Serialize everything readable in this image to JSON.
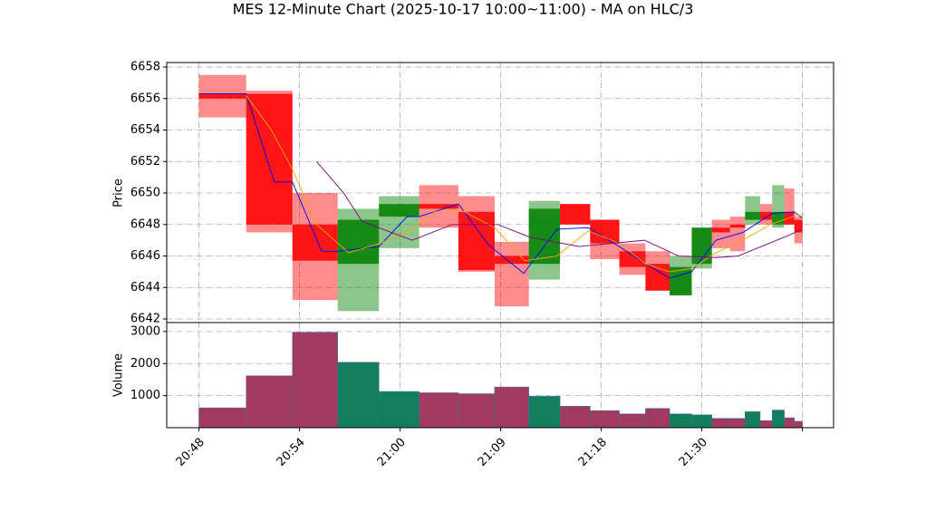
{
  "chart_data": [
    {
      "type": "candlestick",
      "title": "MES 12-Minute Chart (2025-10-17 10:00~11:00) - MA on HLC/3",
      "ylabel": "Price",
      "x_start": [
        0,
        0.47,
        0.93,
        1.38,
        1.79,
        2.19,
        2.58,
        2.94,
        3.28,
        3.59,
        3.89,
        4.18,
        4.44,
        4.68,
        4.9,
        5.1,
        5.28,
        5.43,
        5.58,
        5.7,
        5.82,
        5.92
      ],
      "x_end": [
        0.47,
        0.93,
        1.38,
        1.79,
        2.19,
        2.58,
        2.94,
        3.28,
        3.59,
        3.89,
        4.18,
        4.44,
        4.68,
        4.9,
        5.1,
        5.28,
        5.43,
        5.58,
        5.7,
        5.82,
        5.92,
        6.0
      ],
      "open": [
        6656.3,
        6656.3,
        6648.0,
        6645.5,
        6648.5,
        6649.3,
        6648.8,
        6646.0,
        6645.5,
        6649.3,
        6648.3,
        6646.3,
        6645.5,
        6643.5,
        6645.5,
        6647.8,
        6648.0,
        6648.3,
        6648.8,
        6648.0,
        6648.8,
        6648.3
      ],
      "high": [
        6657.5,
        6656.5,
        6650.0,
        6649.0,
        6649.8,
        6650.5,
        6649.8,
        6646.9,
        6649.5,
        6649.3,
        6648.3,
        6646.8,
        6646.3,
        6646.0,
        6647.8,
        6648.3,
        6648.5,
        6649.8,
        6649.3,
        6650.5,
        6650.3,
        6648.5
      ],
      "low": [
        6654.8,
        6647.5,
        6643.2,
        6642.5,
        6646.5,
        6647.8,
        6645.0,
        6642.8,
        6644.5,
        6648.0,
        6645.8,
        6644.8,
        6643.8,
        6643.5,
        6645.2,
        6646.5,
        6646.3,
        6648.0,
        6648.0,
        6647.8,
        6648.0,
        6646.8
      ],
      "close": [
        6656.0,
        6648.0,
        6645.7,
        6648.3,
        6649.3,
        6649.0,
        6645.1,
        6645.5,
        6649.0,
        6648.0,
        6646.8,
        6645.3,
        6643.8,
        6645.3,
        6647.8,
        6647.5,
        6647.8,
        6648.8,
        6648.3,
        6648.8,
        6648.0,
        6647.5
      ],
      "up_color": "#008000",
      "down_color": "#ff0000",
      "lines": [
        {
          "color": "#0000ff",
          "x": [
            0,
            0.47,
            0.75,
            0.93,
            1.22,
            1.38,
            1.79,
            2.07,
            2.19,
            2.58,
            2.88,
            3.23,
            3.56,
            3.87,
            4.18,
            4.44,
            4.68,
            4.9,
            5.14,
            5.41,
            5.7,
            5.92,
            6.0
          ],
          "values": [
            6656.3,
            6656.3,
            6650.7,
            6650.7,
            6646.3,
            6646.3,
            6646.6,
            6648.5,
            6648.5,
            6649.3,
            6646.7,
            6644.9,
            6647.7,
            6647.8,
            6646.6,
            6645.5,
            6644.6,
            6645.0,
            6647.0,
            6647.5,
            6648.7,
            6648.8,
            6648.4
          ]
        },
        {
          "color": "#ffa500",
          "x": [
            0.47,
            0.72,
            0.93,
            1.17,
            1.49,
            1.8,
            2.07,
            2.34,
            2.58,
            2.94,
            3.24,
            3.56,
            3.87,
            4.18,
            4.44,
            4.68,
            4.9,
            5.14,
            5.41,
            5.68,
            5.95,
            6.0
          ],
          "values": [
            6656.2,
            6654,
            6651.5,
            6648,
            6646.2,
            6646.8,
            6647.5,
            6648.8,
            6649.0,
            6647.8,
            6645.7,
            6646.0,
            6647.6,
            6646.8,
            6645.5,
            6645.0,
            6645.2,
            6646.2,
            6647.0,
            6648.0,
            6648.6,
            6648.6
          ]
        },
        {
          "color": "#800080",
          "x": [
            1.17,
            1.44,
            1.62,
            2.12,
            2.52,
            2.97,
            3.29,
            3.78,
            4.43,
            4.77,
            5.14,
            5.36,
            5.63,
            5.86,
            6.0
          ],
          "values": [
            6652.0,
            6650.0,
            6648.2,
            6647.0,
            6648.0,
            6648.0,
            6647.2,
            6646.6,
            6647.0,
            6646.0,
            6645.9,
            6646.0,
            6646.7,
            6647.3,
            6647.7
          ]
        }
      ],
      "xlim": [
        -0.32,
        6.31
      ],
      "xticks": [
        0,
        1,
        2,
        3,
        4,
        5,
        6
      ],
      "ylim": [
        6641.77,
        6658.29
      ],
      "yticks": [
        6642,
        6644,
        6646,
        6648,
        6650,
        6652,
        6654,
        6656,
        6658
      ],
      "grid": true
    },
    {
      "type": "bar",
      "ylabel": "Volume",
      "values": [
        620,
        1620,
        2980,
        2040,
        1130,
        1090,
        1060,
        1270,
        980,
        670,
        530,
        430,
        600,
        430,
        400,
        290,
        290,
        500,
        220,
        550,
        310,
        200
      ],
      "up_color": "#127e5c",
      "down_color": "#a03a5e",
      "xlim": [
        -0.32,
        6.31
      ],
      "xticks": [
        {
          "value": 0,
          "label": "20:48"
        },
        {
          "value": 1,
          "label": "20:54"
        },
        {
          "value": 2,
          "label": "21:00"
        },
        {
          "value": 3,
          "label": "21:09"
        },
        {
          "value": 4,
          "label": "21:18"
        },
        {
          "value": 5,
          "label": "21:30"
        },
        {
          "value": 6,
          "label": null
        }
      ],
      "ylim": [
        0,
        3280
      ],
      "yticks": [
        1000,
        2000,
        3000
      ],
      "grid": true
    }
  ]
}
